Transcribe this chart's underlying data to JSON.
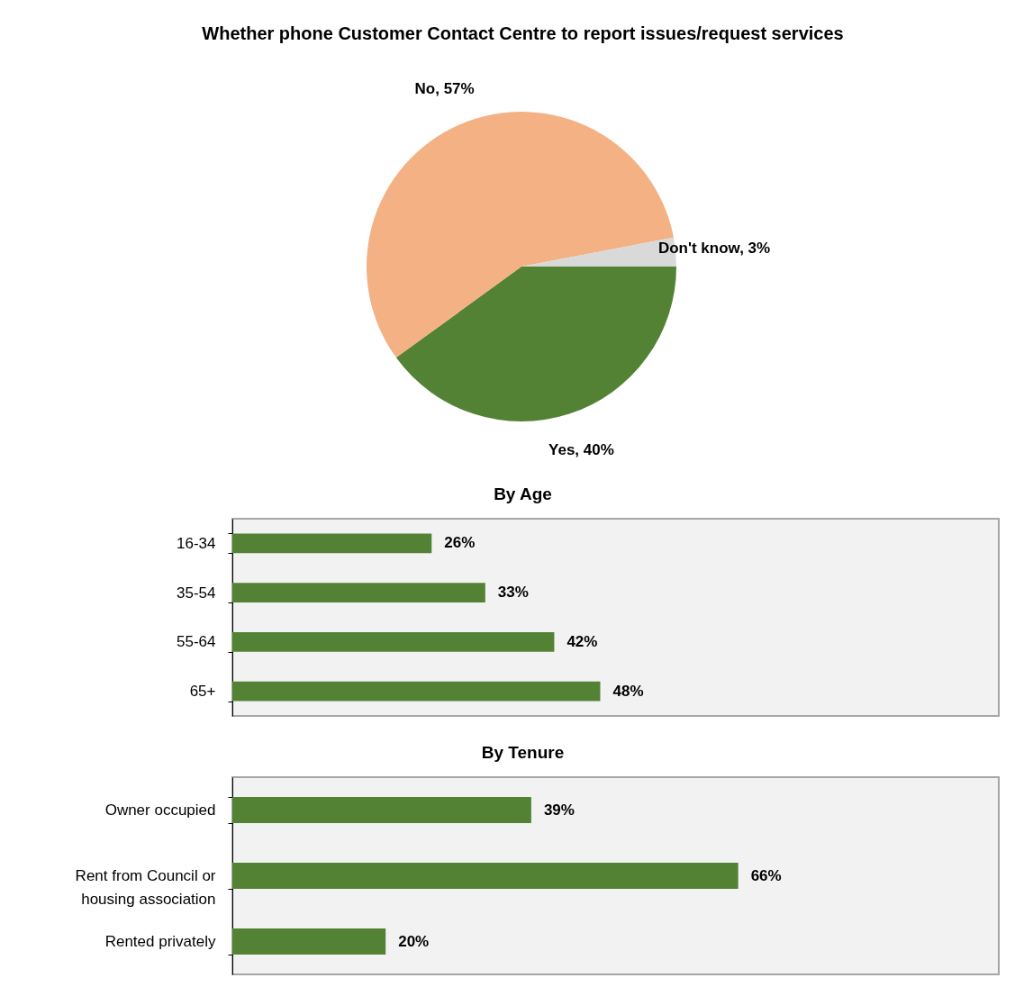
{
  "chart_data": [
    {
      "type": "pie",
      "title": "Whether phone Customer Contact Centre to report issues/request services",
      "categories": [
        "Yes",
        "No",
        "Don't know"
      ],
      "values": [
        40,
        57,
        3
      ],
      "colors": [
        "#548235",
        "#f4b183",
        "#d9d9d9"
      ],
      "value_labels": [
        "40%",
        "57%",
        "3%"
      ]
    },
    {
      "type": "bar",
      "orientation": "horizontal",
      "title": "By Age",
      "categories": [
        "16-34",
        "35-54",
        "55-64",
        "65+"
      ],
      "values": [
        26,
        33,
        42,
        48
      ],
      "color": "#548235",
      "value_labels": [
        "26%",
        "33%",
        "42%",
        "48%"
      ],
      "xlim": [
        0,
        100
      ]
    },
    {
      "type": "bar",
      "orientation": "horizontal",
      "title": "By Tenure",
      "categories": [
        "Owner occupied",
        "Rent from Council or housing association",
        "Rented privately"
      ],
      "values": [
        39,
        66,
        20
      ],
      "color": "#548235",
      "value_labels": [
        "39%",
        "66%",
        "20%"
      ],
      "xlim": [
        0,
        100
      ]
    }
  ]
}
